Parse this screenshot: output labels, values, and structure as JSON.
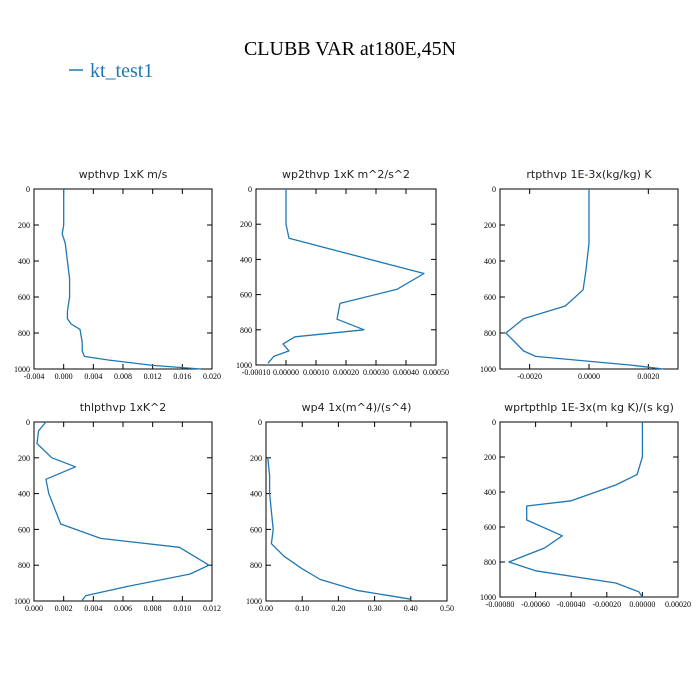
{
  "figure_title": "CLUBB VAR at180E,45N",
  "legend": {
    "label": "kt_test1",
    "color": "#1f77b4",
    "position": "top-left"
  },
  "chart_data": [
    {
      "type": "line",
      "title": "wpthvp  1xK m/s",
      "xlim": [
        -0.004,
        0.02
      ],
      "ylim": [
        1000,
        0
      ],
      "x_ticks": [
        "-0.004",
        "0.000",
        "0.004",
        "0.008",
        "0.012",
        "0.016",
        "0.020"
      ],
      "y_ticks": [
        "0",
        "200",
        "400",
        "600",
        "800",
        "1000"
      ],
      "series": [
        {
          "name": "kt_test1",
          "points": [
            [
              0,
              0
            ],
            [
              0,
              100
            ],
            [
              0,
              200
            ],
            [
              -0.0002,
              250
            ],
            [
              0.0002,
              300
            ],
            [
              0.0005,
              400
            ],
            [
              0.0008,
              500
            ],
            [
              0.0008,
              600
            ],
            [
              0.0005,
              680
            ],
            [
              0.0005,
              720
            ],
            [
              0.001,
              750
            ],
            [
              0.0022,
              780
            ],
            [
              0.0025,
              850
            ],
            [
              0.0025,
              900
            ],
            [
              0.0028,
              930
            ],
            [
              0.006,
              950
            ],
            [
              0.012,
              980
            ],
            [
              0.0185,
              1000
            ]
          ]
        }
      ]
    },
    {
      "type": "line",
      "title": "wp2thvp  1xK m^2/s^2",
      "xlim": [
        -0.0001,
        0.0005
      ],
      "ylim": [
        1000,
        0
      ],
      "x_ticks": [
        "-0.00010",
        "0.00000",
        "0.00010",
        "0.00020",
        "0.00030",
        "0.00040",
        "0.00050"
      ],
      "y_ticks": [
        "0",
        "200",
        "400",
        "600",
        "800",
        "1000"
      ],
      "series": [
        {
          "name": "kt_test1",
          "points": [
            [
              0,
              0
            ],
            [
              0,
              200
            ],
            [
              1e-05,
              280
            ],
            [
              0.00046,
              480
            ],
            [
              0.00037,
              570
            ],
            [
              0.00018,
              650
            ],
            [
              0.00017,
              740
            ],
            [
              0.00026,
              800
            ],
            [
              3e-05,
              840
            ],
            [
              -1e-05,
              880
            ],
            [
              1e-05,
              920
            ],
            [
              -4e-05,
              950
            ],
            [
              -6e-05,
              990
            ]
          ]
        }
      ]
    },
    {
      "type": "line",
      "title": "rtpthvp  1E-3x(kg/kg) K",
      "xlim": [
        -0.003,
        0.003
      ],
      "ylim": [
        1000,
        0
      ],
      "x_ticks": [
        "-0.0020",
        "0.0000",
        "0.0020"
      ],
      "y_ticks": [
        "0",
        "200",
        "400",
        "600",
        "800",
        "1000"
      ],
      "series": [
        {
          "name": "kt_test1",
          "points": [
            [
              0,
              0
            ],
            [
              0,
              300
            ],
            [
              -0.0001,
              450
            ],
            [
              -0.0002,
              560
            ],
            [
              -0.0008,
              650
            ],
            [
              -0.0022,
              720
            ],
            [
              -0.0028,
              800
            ],
            [
              -0.0025,
              850
            ],
            [
              -0.0022,
              900
            ],
            [
              -0.0018,
              930
            ],
            [
              0.0015,
              980
            ],
            [
              0.0025,
              1000
            ]
          ]
        }
      ]
    },
    {
      "type": "line",
      "title": "thlpthvp  1xK^2",
      "xlim": [
        0,
        0.012
      ],
      "ylim": [
        1000,
        0
      ],
      "x_ticks": [
        "0.000",
        "0.002",
        "0.004",
        "0.006",
        "0.008",
        "0.010",
        "0.012"
      ],
      "y_ticks": [
        "0",
        "200",
        "400",
        "600",
        "800",
        "1000"
      ],
      "series": [
        {
          "name": "kt_test1",
          "points": [
            [
              0.0008,
              0
            ],
            [
              0.0003,
              50
            ],
            [
              0.0002,
              120
            ],
            [
              0.0012,
              200
            ],
            [
              0.0028,
              250
            ],
            [
              0.0008,
              320
            ],
            [
              0.001,
              400
            ],
            [
              0.0018,
              570
            ],
            [
              0.0045,
              650
            ],
            [
              0.0098,
              700
            ],
            [
              0.0118,
              800
            ],
            [
              0.0105,
              850
            ],
            [
              0.0062,
              920
            ],
            [
              0.0035,
              970
            ],
            [
              0.0032,
              1000
            ]
          ]
        }
      ]
    },
    {
      "type": "line",
      "title": "wp4  1x(m^4)/(s^4)",
      "xlim": [
        0,
        0.5
      ],
      "ylim": [
        1000,
        0
      ],
      "x_ticks": [
        "0.00",
        "0.10",
        "0.20",
        "0.30",
        "0.40",
        "0.50"
      ],
      "y_ticks": [
        "0",
        "200",
        "400",
        "600",
        "800",
        "1000"
      ],
      "series": [
        {
          "name": "kt_test1",
          "points": [
            [
              0.005,
              200
            ],
            [
              0.01,
              300
            ],
            [
              0.01,
              400
            ],
            [
              0.015,
              500
            ],
            [
              0.02,
              600
            ],
            [
              0.015,
              680
            ],
            [
              0.05,
              750
            ],
            [
              0.1,
              820
            ],
            [
              0.15,
              880
            ],
            [
              0.25,
              940
            ],
            [
              0.4,
              990
            ]
          ]
        }
      ]
    },
    {
      "type": "line",
      "title": "wprtpthlp  1E-3x(m kg K)/(s kg)",
      "xlim": [
        -0.0008,
        0.0002
      ],
      "ylim": [
        1000,
        0
      ],
      "x_ticks": [
        "-0.00080",
        "-0.00060",
        "-0.00040",
        "-0.00020",
        "0.00000",
        "0.00020"
      ],
      "y_ticks": [
        "0",
        "200",
        "400",
        "600",
        "800",
        "1000"
      ],
      "series": [
        {
          "name": "kt_test1",
          "points": [
            [
              0,
              0
            ],
            [
              0,
              200
            ],
            [
              -3e-05,
              300
            ],
            [
              -0.00015,
              360
            ],
            [
              -0.0004,
              450
            ],
            [
              -0.00065,
              480
            ],
            [
              -0.00065,
              560
            ],
            [
              -0.00045,
              650
            ],
            [
              -0.00055,
              720
            ],
            [
              -0.00075,
              800
            ],
            [
              -0.0006,
              850
            ],
            [
              -0.00015,
              920
            ],
            [
              -2e-05,
              970
            ],
            [
              0,
              1000
            ]
          ]
        }
      ]
    }
  ]
}
